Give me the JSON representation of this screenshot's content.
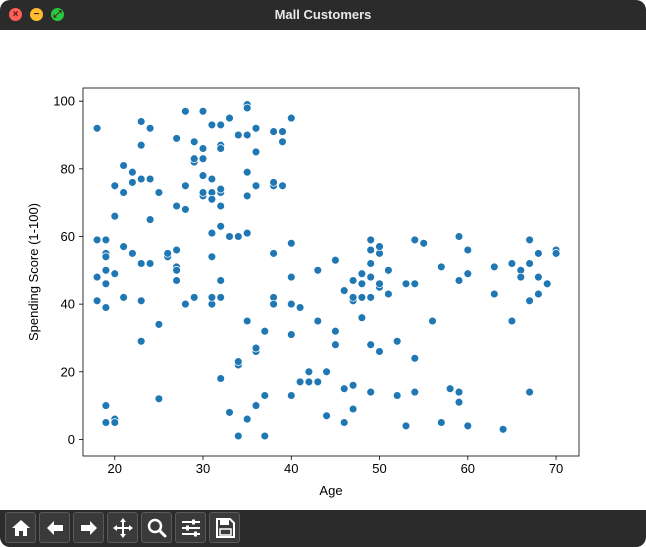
{
  "window": {
    "title": "Mall Customers"
  },
  "toolbar": {
    "buttons": [
      {
        "name": "home-icon"
      },
      {
        "name": "back-arrow-icon"
      },
      {
        "name": "forward-arrow-icon"
      },
      {
        "name": "pan-icon"
      },
      {
        "name": "zoom-icon"
      },
      {
        "name": "configure-subplots-icon"
      },
      {
        "name": "save-icon"
      }
    ]
  },
  "colors": {
    "point": "#1f77b4",
    "titlebar": "#2b2b2b"
  },
  "chart_data": {
    "type": "scatter",
    "xlabel": "Age",
    "ylabel": "Spending Score (1-100)",
    "xlim": [
      16.4,
      72.6
    ],
    "ylim": [
      -4.9,
      103.9
    ],
    "xticks": [
      20,
      30,
      40,
      50,
      60,
      70
    ],
    "yticks": [
      0,
      20,
      40,
      60,
      80,
      100
    ],
    "grid": false,
    "points": [
      [
        19,
        39
      ],
      [
        21,
        81
      ],
      [
        20,
        6
      ],
      [
        23,
        77
      ],
      [
        31,
        40
      ],
      [
        22,
        76
      ],
      [
        35,
        6
      ],
      [
        23,
        94
      ],
      [
        64,
        3
      ],
      [
        30,
        72
      ],
      [
        67,
        14
      ],
      [
        35,
        99
      ],
      [
        58,
        15
      ],
      [
        24,
        77
      ],
      [
        37,
        13
      ],
      [
        22,
        79
      ],
      [
        35,
        35
      ],
      [
        20,
        66
      ],
      [
        52,
        29
      ],
      [
        35,
        98
      ],
      [
        35,
        35
      ],
      [
        25,
        73
      ],
      [
        46,
        5
      ],
      [
        31,
        73
      ],
      [
        54,
        14
      ],
      [
        29,
        82
      ],
      [
        45,
        32
      ],
      [
        35,
        61
      ],
      [
        40,
        31
      ],
      [
        23,
        87
      ],
      [
        60,
        4
      ],
      [
        21,
        73
      ],
      [
        53,
        4
      ],
      [
        18,
        92
      ],
      [
        49,
        14
      ],
      [
        21,
        81
      ],
      [
        42,
        17
      ],
      [
        30,
        73
      ],
      [
        36,
        26
      ],
      [
        20,
        75
      ],
      [
        65,
        35
      ],
      [
        24,
        92
      ],
      [
        48,
        36
      ],
      [
        31,
        61
      ],
      [
        49,
        28
      ],
      [
        24,
        65
      ],
      [
        50,
        55
      ],
      [
        27,
        47
      ],
      [
        29,
        42
      ],
      [
        31,
        42
      ],
      [
        49,
        52
      ],
      [
        33,
        60
      ],
      [
        31,
        54
      ],
      [
        59,
        60
      ],
      [
        50,
        45
      ],
      [
        47,
        41
      ],
      [
        51,
        50
      ],
      [
        69,
        46
      ],
      [
        27,
        51
      ],
      [
        53,
        46
      ],
      [
        70,
        56
      ],
      [
        19,
        55
      ],
      [
        67,
        52
      ],
      [
        54,
        59
      ],
      [
        63,
        51
      ],
      [
        18,
        59
      ],
      [
        43,
        50
      ],
      [
        68,
        48
      ],
      [
        19,
        59
      ],
      [
        32,
        47
      ],
      [
        70,
        55
      ],
      [
        47,
        42
      ],
      [
        60,
        49
      ],
      [
        60,
        56
      ],
      [
        59,
        47
      ],
      [
        26,
        54
      ],
      [
        45,
        53
      ],
      [
        40,
        48
      ],
      [
        23,
        52
      ],
      [
        49,
        42
      ],
      [
        57,
        51
      ],
      [
        38,
        55
      ],
      [
        67,
        41
      ],
      [
        46,
        44
      ],
      [
        21,
        57
      ],
      [
        48,
        46
      ],
      [
        55,
        58
      ],
      [
        22,
        55
      ],
      [
        34,
        60
      ],
      [
        50,
        46
      ],
      [
        68,
        55
      ],
      [
        18,
        41
      ],
      [
        48,
        49
      ],
      [
        40,
        40
      ],
      [
        32,
        42
      ],
      [
        24,
        52
      ],
      [
        47,
        47
      ],
      [
        27,
        50
      ],
      [
        48,
        42
      ],
      [
        20,
        49
      ],
      [
        23,
        41
      ],
      [
        49,
        48
      ],
      [
        67,
        59
      ],
      [
        26,
        55
      ],
      [
        49,
        56
      ],
      [
        21,
        42
      ],
      [
        66,
        50
      ],
      [
        54,
        46
      ],
      [
        68,
        43
      ],
      [
        66,
        48
      ],
      [
        65,
        52
      ],
      [
        19,
        54
      ],
      [
        38,
        42
      ],
      [
        19,
        46
      ],
      [
        18,
        48
      ],
      [
        19,
        50
      ],
      [
        63,
        43
      ],
      [
        49,
        59
      ],
      [
        51,
        43
      ],
      [
        50,
        57
      ],
      [
        27,
        56
      ],
      [
        38,
        40
      ],
      [
        40,
        58
      ],
      [
        39,
        91
      ],
      [
        23,
        29
      ],
      [
        31,
        77
      ],
      [
        43,
        35
      ],
      [
        40,
        95
      ],
      [
        59,
        11
      ],
      [
        38,
        75
      ],
      [
        47,
        9
      ],
      [
        39,
        75
      ],
      [
        25,
        34
      ],
      [
        31,
        71
      ],
      [
        20,
        5
      ],
      [
        29,
        88
      ],
      [
        44,
        7
      ],
      [
        32,
        73
      ],
      [
        19,
        10
      ],
      [
        35,
        72
      ],
      [
        57,
        5
      ],
      [
        32,
        93
      ],
      [
        28,
        40
      ],
      [
        32,
        87
      ],
      [
        25,
        12
      ],
      [
        28,
        97
      ],
      [
        48,
        36
      ],
      [
        32,
        74
      ],
      [
        34,
        22
      ],
      [
        34,
        90
      ],
      [
        43,
        17
      ],
      [
        39,
        88
      ],
      [
        44,
        20
      ],
      [
        38,
        76
      ],
      [
        47,
        16
      ],
      [
        27,
        89
      ],
      [
        37,
        1
      ],
      [
        30,
        78
      ],
      [
        34,
        1
      ],
      [
        30,
        73
      ],
      [
        56,
        35
      ],
      [
        29,
        83
      ],
      [
        19,
        5
      ],
      [
        31,
        93
      ],
      [
        50,
        26
      ],
      [
        36,
        75
      ],
      [
        42,
        20
      ],
      [
        33,
        95
      ],
      [
        36,
        27
      ],
      [
        32,
        63
      ],
      [
        40,
        13
      ],
      [
        28,
        75
      ],
      [
        36,
        10
      ],
      [
        36,
        92
      ],
      [
        52,
        13
      ],
      [
        30,
        86
      ],
      [
        58,
        15
      ],
      [
        27,
        69
      ],
      [
        59,
        14
      ],
      [
        35,
        90
      ],
      [
        37,
        32
      ],
      [
        32,
        86
      ],
      [
        46,
        15
      ],
      [
        29,
        88
      ],
      [
        41,
        39
      ],
      [
        30,
        97
      ],
      [
        54,
        24
      ],
      [
        28,
        68
      ],
      [
        41,
        17
      ],
      [
        36,
        85
      ],
      [
        34,
        23
      ],
      [
        32,
        69
      ],
      [
        33,
        8
      ],
      [
        38,
        91
      ],
      [
        47,
        16
      ],
      [
        35,
        79
      ],
      [
        45,
        28
      ],
      [
        32,
        74
      ],
      [
        32,
        18
      ],
      [
        30,
        83
      ]
    ]
  }
}
